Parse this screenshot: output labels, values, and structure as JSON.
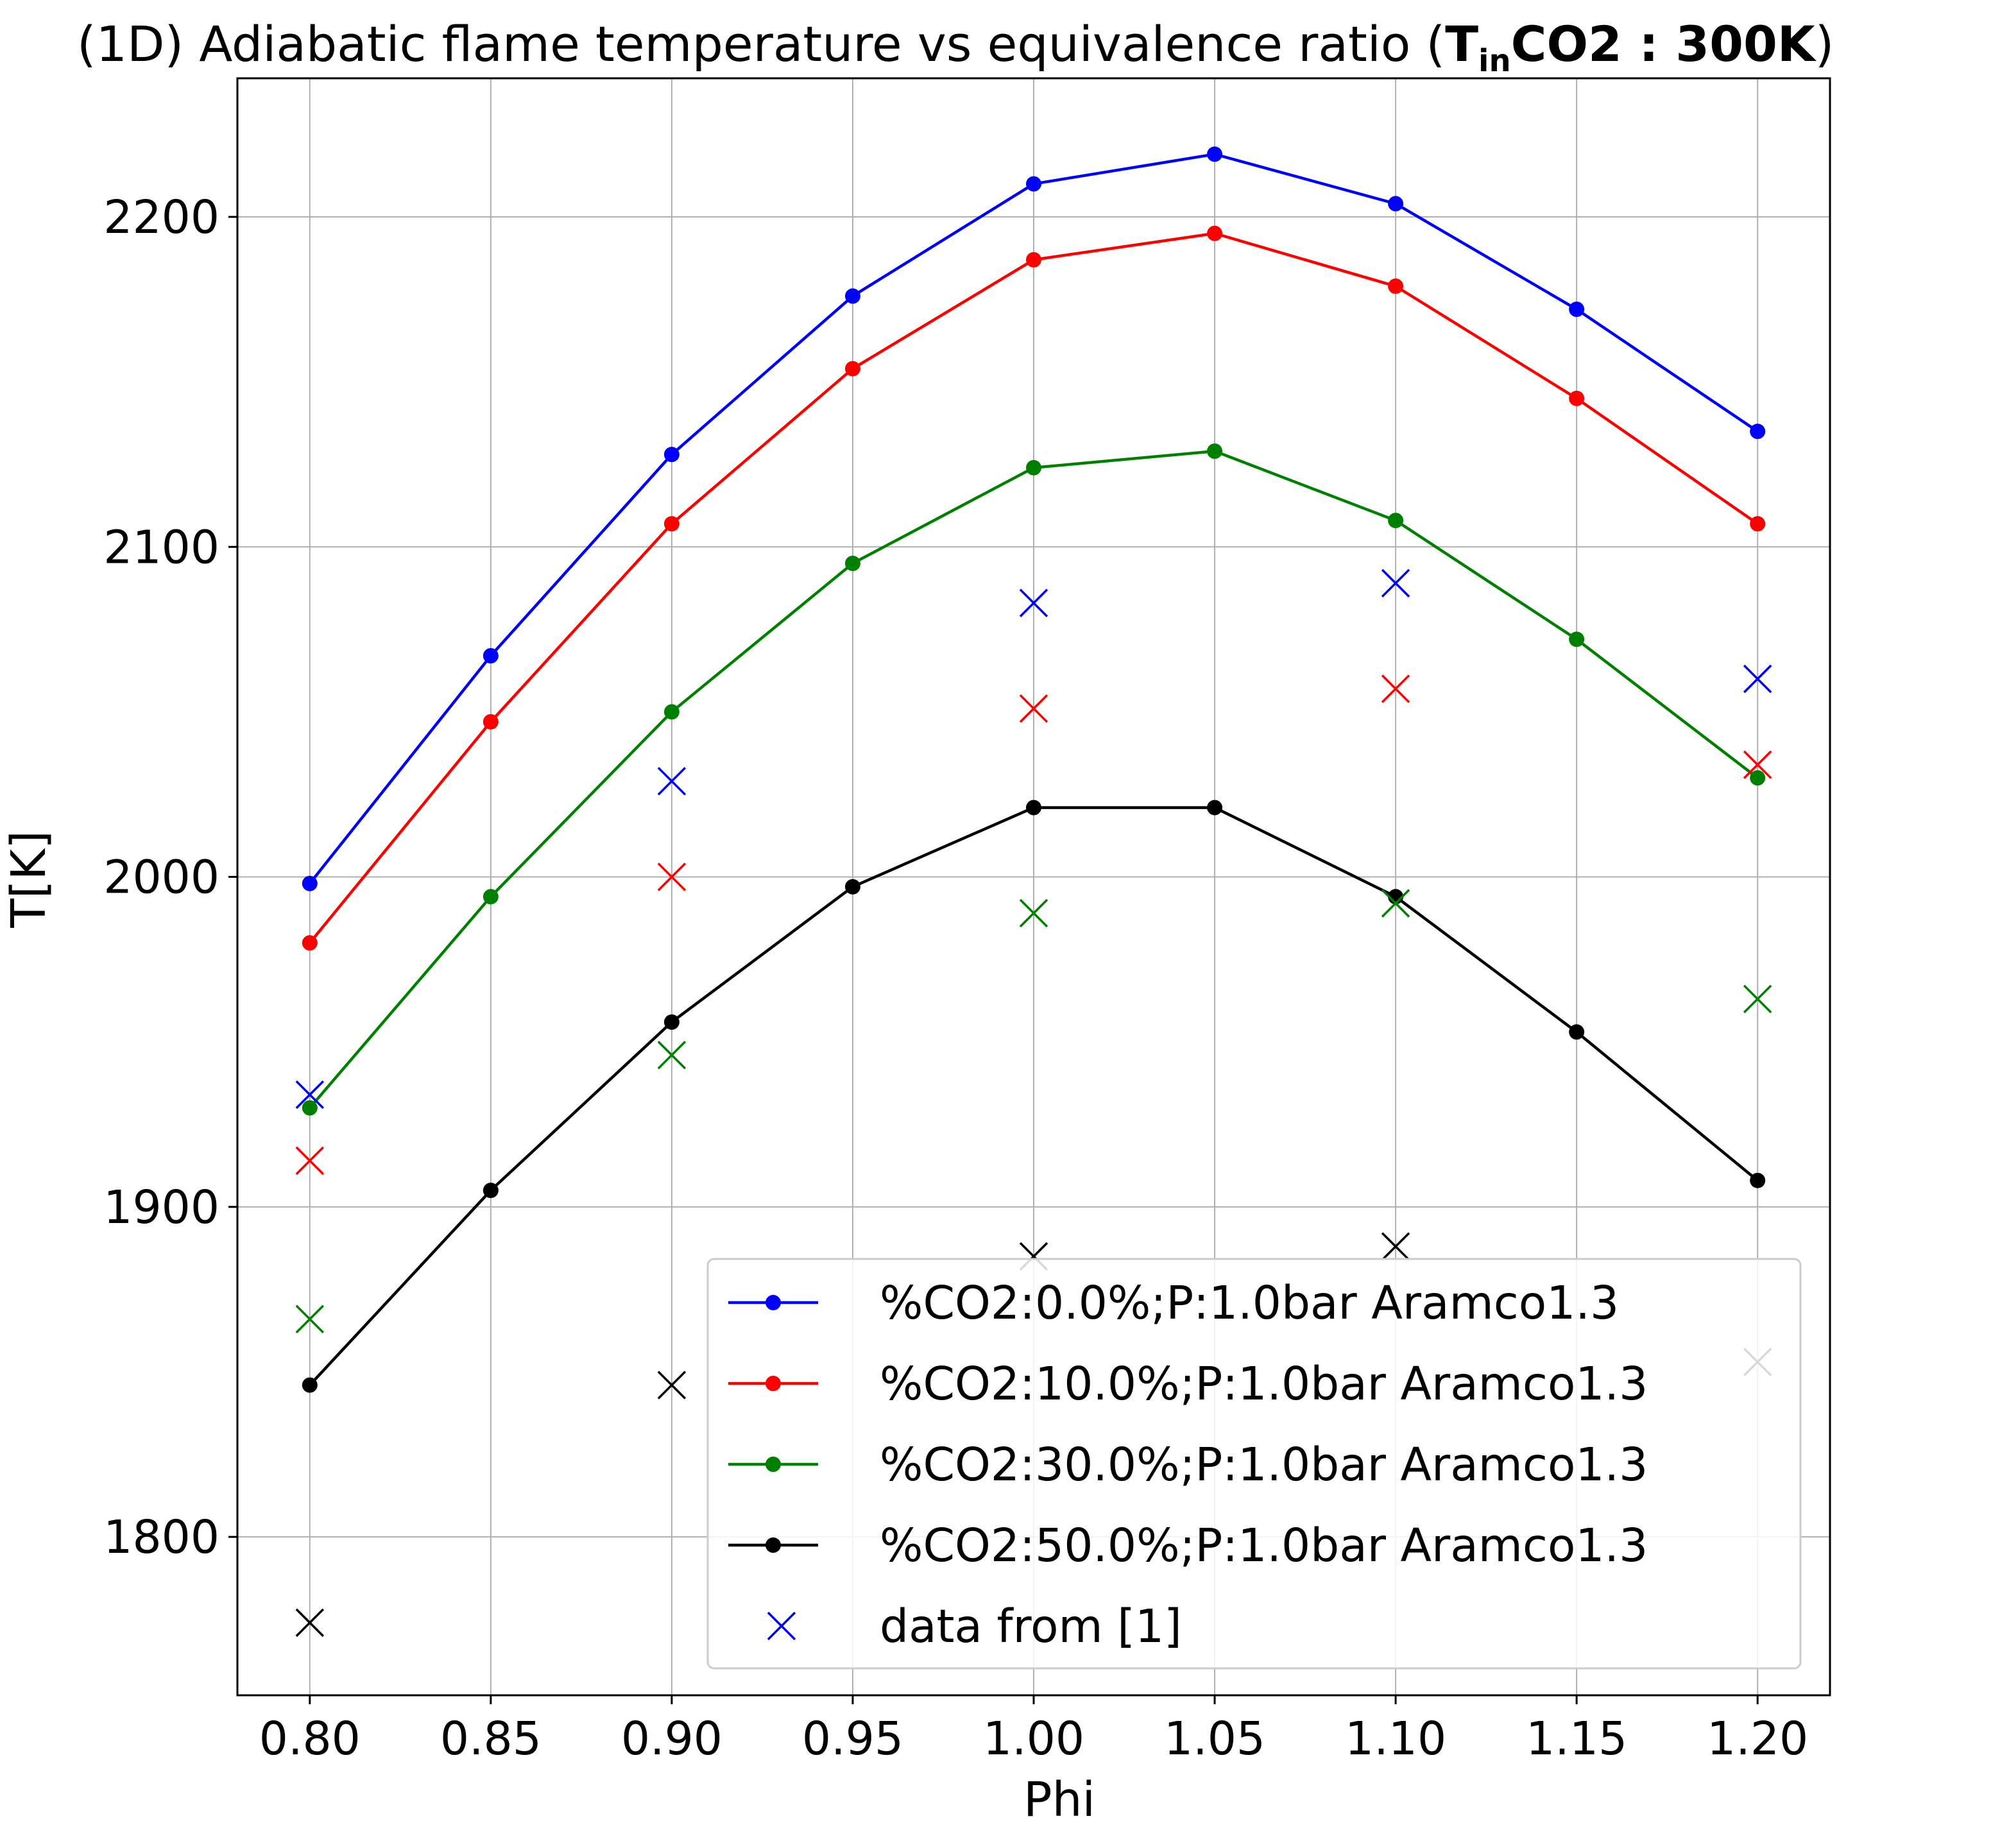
{
  "chart_data": {
    "type": "line",
    "title": {
      "prefix": "(1D) Adiabatic flame temperature vs equivalence ratio (",
      "bold_main": "T",
      "bold_sub": "in",
      "bold_rest": "CO2 : 300K",
      "suffix": ")"
    },
    "xlabel": "Phi",
    "ylabel": "T[K]",
    "xlim": [
      0.78,
      1.22
    ],
    "ylim": [
      1752,
      2242
    ],
    "xticks": [
      0.8,
      0.85,
      0.9,
      0.95,
      1.0,
      1.05,
      1.1,
      1.15,
      1.2
    ],
    "xtick_labels": [
      "0.80",
      "0.85",
      "0.90",
      "0.95",
      "1.00",
      "1.05",
      "1.10",
      "1.15",
      "1.20"
    ],
    "yticks": [
      1800,
      1900,
      2000,
      2100,
      2200
    ],
    "ytick_labels": [
      "1800",
      "1900",
      "2000",
      "2100",
      "2200"
    ],
    "grid": true,
    "legend_position": "lower-right",
    "x": [
      0.8,
      0.85,
      0.9,
      0.95,
      1.0,
      1.05,
      1.1,
      1.15,
      1.2
    ],
    "series": [
      {
        "name": "%CO2:0.0%;P:1.0bar Aramco1.3",
        "color": "#0000ff",
        "values": [
          1998,
          2067,
          2128,
          2176,
          2210,
          2219,
          2204,
          2172,
          2135
        ]
      },
      {
        "name": "%CO2:10.0%;P:1.0bar Aramco1.3",
        "color": "#ff0000",
        "values": [
          1980,
          2047,
          2107,
          2154,
          2187,
          2195,
          2179,
          2145,
          2107
        ]
      },
      {
        "name": "%CO2:30.0%;P:1.0bar Aramco1.3",
        "color": "#008000",
        "values": [
          1930,
          1994,
          2050,
          2095,
          2124,
          2129,
          2108,
          2072,
          2030
        ]
      },
      {
        "name": "%CO2:50.0%;P:1.0bar Aramco1.3",
        "color": "#000000",
        "values": [
          1846,
          1905,
          1956,
          1997,
          2021,
          2021,
          1994,
          1953,
          1908
        ]
      }
    ],
    "reference_data": {
      "name": "data from [1]",
      "x": [
        0.8,
        0.9,
        1.0,
        1.1,
        1.2
      ],
      "sets": [
        {
          "color": "#0000ff",
          "values": [
            1934,
            2029,
            2083,
            2089,
            2060
          ]
        },
        {
          "color": "#ff0000",
          "values": [
            1914,
            2000,
            2051,
            2057,
            2034
          ]
        },
        {
          "color": "#008000",
          "values": [
            1866,
            1946,
            1989,
            1992,
            1963
          ]
        },
        {
          "color": "#000000",
          "values": [
            1774,
            1846,
            1885,
            1888,
            1853
          ]
        }
      ]
    }
  }
}
